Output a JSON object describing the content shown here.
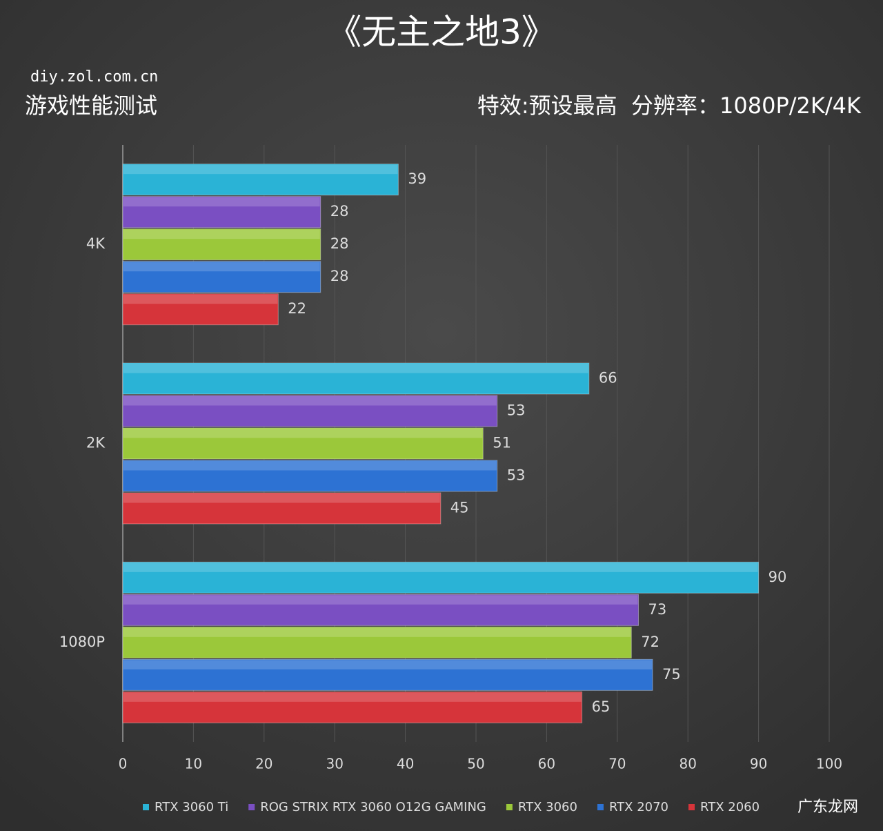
{
  "chart_data": {
    "type": "hbar",
    "title": "《无主之地3》",
    "annotations": [
      "diy.zol.com.cn",
      "游戏性能测试",
      "特效:预设最高  分辨率：1080P/2K/4K",
      "广东龙网"
    ],
    "categories": [
      "4K",
      "2K",
      "1080P"
    ],
    "series": [
      {
        "name": "RTX 3060 Ti",
        "color": "#2ab3d6",
        "values": [
          39,
          66,
          90
        ]
      },
      {
        "name": "ROG STRIX RTX 3060 O12G GAMING",
        "color": "#7a4fc2",
        "values": [
          28,
          53,
          73
        ]
      },
      {
        "name": "RTX 3060",
        "color": "#9bc83a",
        "values": [
          28,
          51,
          72
        ]
      },
      {
        "name": "RTX 2070",
        "color": "#2d72d3",
        "values": [
          28,
          53,
          75
        ]
      },
      {
        "name": "RTX 2060",
        "color": "#d6343a",
        "values": [
          22,
          45,
          65
        ]
      }
    ],
    "xlim": [
      0,
      100
    ],
    "xticks": [
      0,
      10,
      20,
      30,
      40,
      50,
      60,
      70,
      80,
      90,
      100
    ],
    "grid": true
  }
}
